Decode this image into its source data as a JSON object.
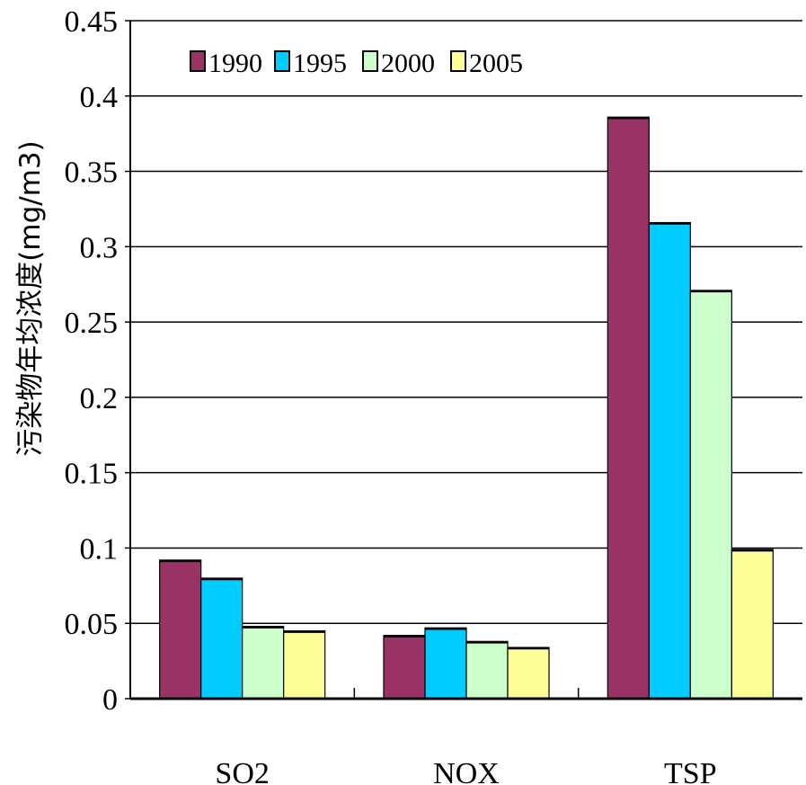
{
  "chart_data": {
    "type": "bar",
    "ylabel": "污染物年均浓度(mg/m3)",
    "xlabel": "",
    "ylim": [
      0,
      0.45
    ],
    "yticks": [
      "0",
      "0.05",
      "0.1",
      "0.15",
      "0.2",
      "0.25",
      "0.3",
      "0.35",
      "0.4",
      "0.45"
    ],
    "categories": [
      "SO2",
      "NOX",
      "TSP"
    ],
    "grid": true,
    "legend_position": "top-left",
    "series": [
      {
        "name": "1990",
        "color": "#993366",
        "values": [
          0.092,
          0.042,
          0.386
        ]
      },
      {
        "name": "1995",
        "color": "#00CCFF",
        "values": [
          0.08,
          0.047,
          0.316
        ]
      },
      {
        "name": "2000",
        "color": "#CCFFCC",
        "values": [
          0.048,
          0.038,
          0.271
        ]
      },
      {
        "name": "2005",
        "color": "#FFFF99",
        "values": [
          0.045,
          0.034,
          0.099
        ]
      }
    ]
  }
}
